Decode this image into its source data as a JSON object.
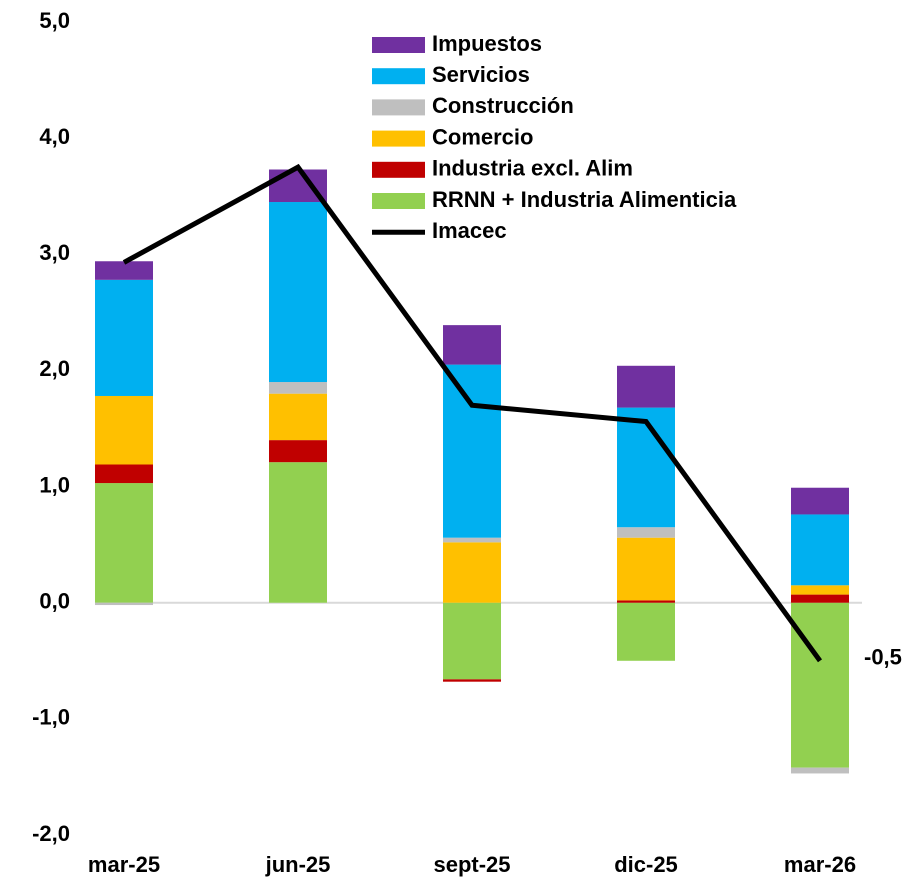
{
  "chart_data": {
    "type": "bar",
    "categories": [
      "mar-25",
      "jun-25",
      "sept-25",
      "dic-25",
      "mar-26"
    ],
    "series": [
      {
        "name": "Impuestos",
        "color": "#7030a0",
        "values": [
          0.16,
          0.28,
          0.34,
          0.36,
          0.23
        ]
      },
      {
        "name": "Servicios",
        "color": "#00b0f0",
        "values": [
          1.0,
          1.55,
          1.49,
          1.03,
          0.61
        ]
      },
      {
        "name": "Construcción",
        "color": "#bfbfbf",
        "values": [
          -0.02,
          0.1,
          0.04,
          0.09,
          -0.05
        ]
      },
      {
        "name": "Comercio",
        "color": "#ffc000",
        "values": [
          0.59,
          0.4,
          0.52,
          0.54,
          0.08
        ]
      },
      {
        "name": "Industria excl. Alim",
        "color": "#c00000",
        "values": [
          0.16,
          0.19,
          -0.02,
          0.02,
          0.07
        ]
      },
      {
        "name": "RRNN + Industria Alimenticia",
        "color": "#92d050",
        "values": [
          1.03,
          1.21,
          -0.66,
          -0.5,
          -1.42
        ]
      },
      {
        "name": "Imacec",
        "color": "#000000",
        "type": "line",
        "values": [
          2.93,
          3.75,
          1.7,
          1.56,
          -0.5
        ],
        "value_labels": [
          null,
          null,
          null,
          null,
          "-0,5"
        ]
      }
    ],
    "ylim": [
      -2,
      5
    ],
    "yticks": [
      {
        "value": -2,
        "label": "-2,0"
      },
      {
        "value": -1,
        "label": "-1,0"
      },
      {
        "value": 0,
        "label": "0,0"
      },
      {
        "value": 1,
        "label": "1,0"
      },
      {
        "value": 2,
        "label": "2,0"
      },
      {
        "value": 3,
        "label": "3,0"
      },
      {
        "value": 4,
        "label": "4,0"
      },
      {
        "value": 5,
        "label": "5,0"
      }
    ]
  }
}
